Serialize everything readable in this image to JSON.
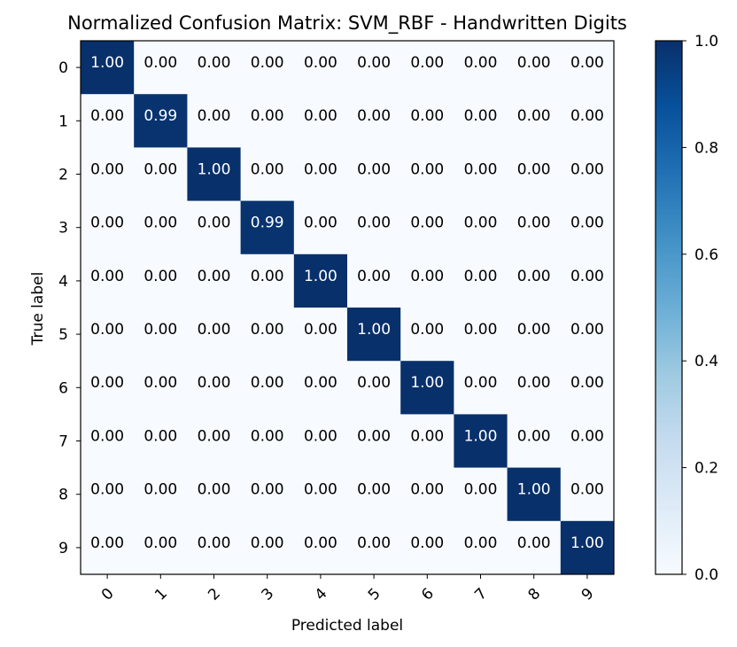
{
  "chart_data": {
    "type": "heatmap",
    "title": "Normalized Confusion Matrix: SVM_RBF - Handwritten Digits",
    "xlabel": "Predicted label",
    "ylabel": "True label",
    "x_categories": [
      "0",
      "1",
      "2",
      "3",
      "4",
      "5",
      "6",
      "7",
      "8",
      "9"
    ],
    "y_categories": [
      "0",
      "1",
      "2",
      "3",
      "4",
      "5",
      "6",
      "7",
      "8",
      "9"
    ],
    "values": [
      [
        1.0,
        0.0,
        0.0,
        0.0,
        0.0,
        0.0,
        0.0,
        0.0,
        0.0,
        0.0
      ],
      [
        0.0,
        0.99,
        0.0,
        0.0,
        0.0,
        0.0,
        0.0,
        0.0,
        0.0,
        0.0
      ],
      [
        0.0,
        0.0,
        1.0,
        0.0,
        0.0,
        0.0,
        0.0,
        0.0,
        0.0,
        0.0
      ],
      [
        0.0,
        0.0,
        0.0,
        0.99,
        0.0,
        0.0,
        0.0,
        0.0,
        0.0,
        0.0
      ],
      [
        0.0,
        0.0,
        0.0,
        0.0,
        1.0,
        0.0,
        0.0,
        0.0,
        0.0,
        0.0
      ],
      [
        0.0,
        0.0,
        0.0,
        0.0,
        0.0,
        1.0,
        0.0,
        0.0,
        0.0,
        0.0
      ],
      [
        0.0,
        0.0,
        0.0,
        0.0,
        0.0,
        0.0,
        1.0,
        0.0,
        0.0,
        0.0
      ],
      [
        0.0,
        0.0,
        0.0,
        0.0,
        0.0,
        0.0,
        0.0,
        1.0,
        0.0,
        0.0
      ],
      [
        0.0,
        0.0,
        0.0,
        0.0,
        0.0,
        0.0,
        0.0,
        0.0,
        1.0,
        0.0
      ],
      [
        0.0,
        0.0,
        0.0,
        0.0,
        0.0,
        0.0,
        0.0,
        0.0,
        0.0,
        1.0
      ]
    ],
    "value_format": "0.00",
    "colormap": "Blues",
    "colorbar": {
      "range": [
        0.0,
        1.0
      ],
      "ticks": [
        "0.0",
        "0.2",
        "0.4",
        "0.6",
        "0.8",
        "1.0"
      ]
    },
    "colors": {
      "low": "#f7fbff",
      "high": "#08306b",
      "text_dark": "#000000",
      "text_light": "#ffffff"
    },
    "grid": false
  }
}
